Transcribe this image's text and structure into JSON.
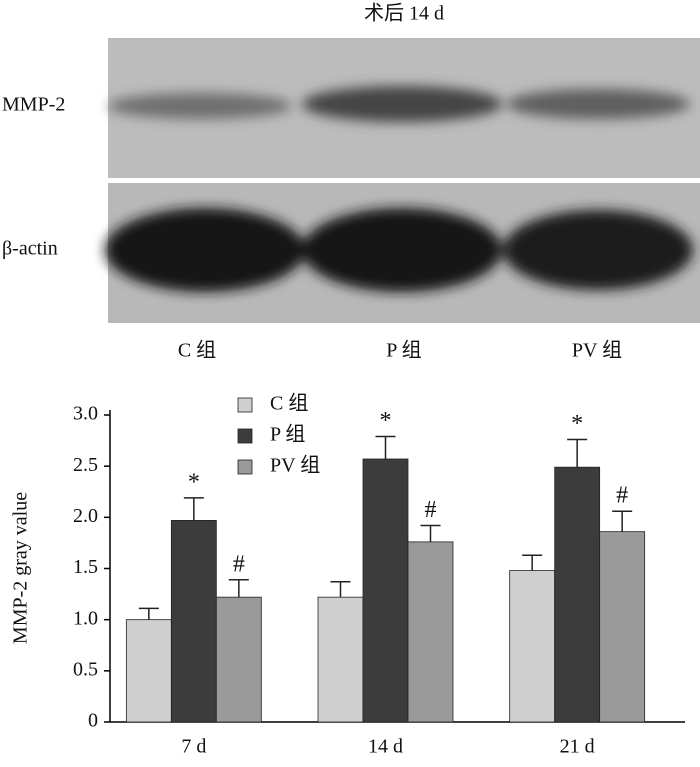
{
  "blot": {
    "title": "术后 14 d",
    "rows": [
      "MMP-2",
      "β-actin"
    ],
    "lanes": [
      "C 组",
      "P 组",
      "PV 组"
    ]
  },
  "chart_data": {
    "type": "bar",
    "ylabel": "MMP-2 gray value",
    "categories": [
      "7 d",
      "14 d",
      "21 d"
    ],
    "series": [
      {
        "name": "C 组",
        "color": "#cfcfcf",
        "values": [
          1.0,
          1.22,
          1.48
        ],
        "errors": [
          0.11,
          0.15,
          0.15
        ]
      },
      {
        "name": "P 组",
        "color": "#3c3c3c",
        "values": [
          1.97,
          2.57,
          2.49
        ],
        "errors": [
          0.22,
          0.22,
          0.27
        ],
        "marker": "*"
      },
      {
        "name": "PV 组",
        "color": "#9a9a9a",
        "values": [
          1.22,
          1.76,
          1.86
        ],
        "errors": [
          0.17,
          0.16,
          0.2
        ],
        "marker": "#"
      }
    ],
    "ylim": [
      0,
      3
    ],
    "yticks": [
      0,
      0.5,
      {
        "value": 1,
        "label": "1.0"
      },
      1.5,
      {
        "value": 2,
        "label": "2.0"
      },
      2.5,
      {
        "value": 3,
        "label": "3.0"
      }
    ]
  }
}
